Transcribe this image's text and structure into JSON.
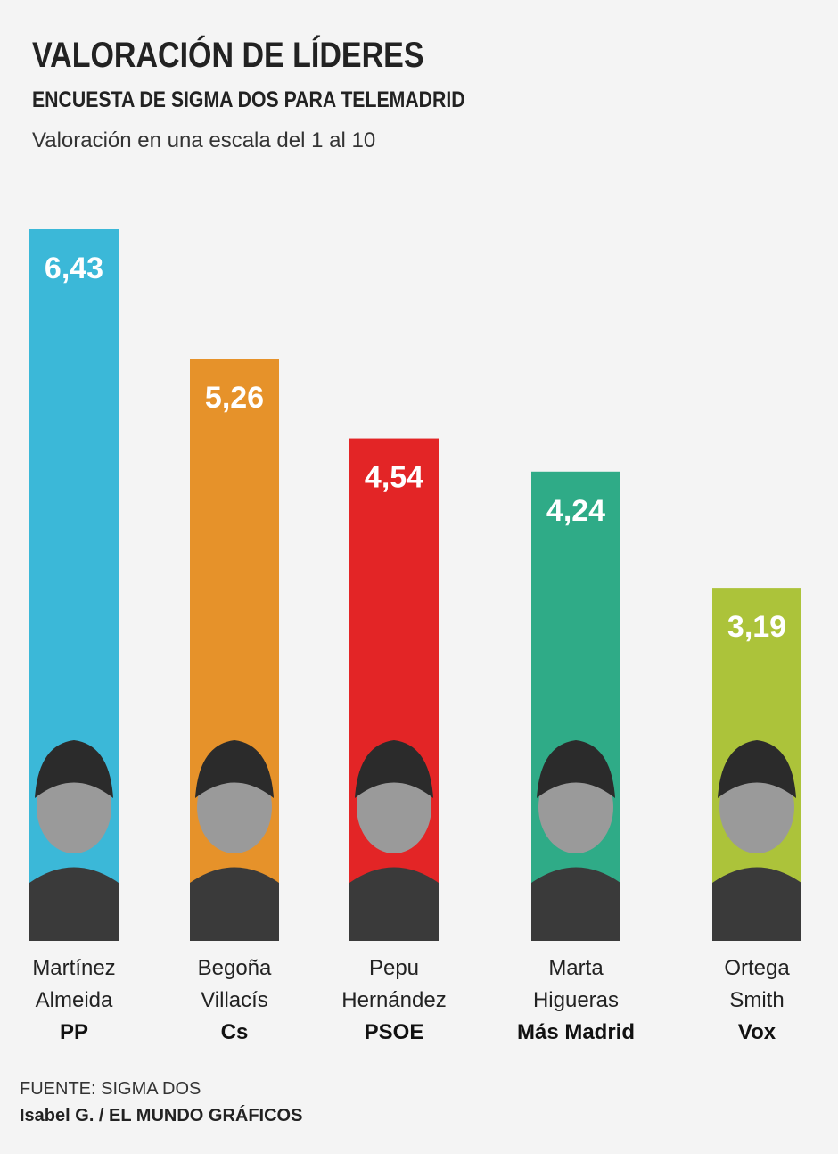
{
  "chart_data": {
    "type": "bar",
    "title": "VALORACIÓN DE LÍDERES",
    "subtitle": "ENCUESTA DE SIGMA DOS PARA TELEMADRID",
    "description": "Valoración en una escala del 1 al 10",
    "categories": [
      "Martínez Almeida",
      "Begoña Villacís",
      "Pepu Hernández",
      "Marta Higueras",
      "Ortega Smith"
    ],
    "parties": [
      "PP",
      "Cs",
      "PSOE",
      "Más Madrid",
      "Vox"
    ],
    "values": [
      6.43,
      5.26,
      4.54,
      4.24,
      3.19
    ],
    "value_labels": [
      "6,43",
      "5,26",
      "4,54",
      "4,24",
      "3,19"
    ],
    "colors": [
      "#3bb8d8",
      "#e6922a",
      "#e32526",
      "#2fab87",
      "#acc33a"
    ],
    "source": "FUENTE: SIGMA DOS",
    "credit": "Isabel G. / EL MUNDO GRÁFICOS"
  }
}
